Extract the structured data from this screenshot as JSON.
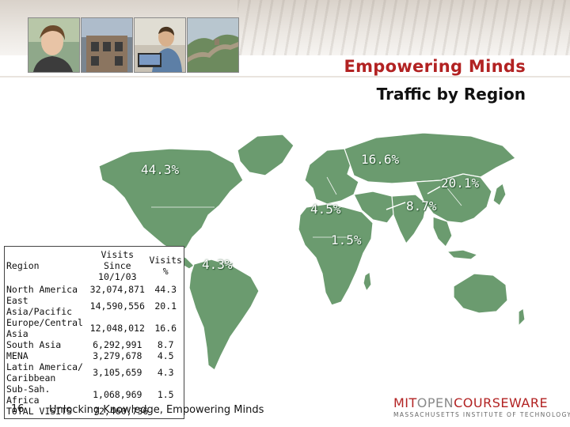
{
  "header": {
    "title": "Empowering Minds",
    "subtitle": "Traffic by Region"
  },
  "map": {
    "labels": {
      "north_america": "44.3%",
      "europe": "16.6%",
      "east_asia": "20.1%",
      "south_asia": "8.7%",
      "mena": "4.5%",
      "sub_saharan_africa": "1.5%",
      "latin_america": "4.3%"
    },
    "colors": {
      "land": "#6b9b6f",
      "land_edge": "#ffffff"
    }
  },
  "table": {
    "headers": {
      "region": "Region",
      "since_line1": "Visits Since",
      "since_line2": "10/1/03",
      "pct_line1": "Visits",
      "pct_line2": "%"
    },
    "rows": [
      {
        "region": [
          "North America"
        ],
        "visits": "32,074,871",
        "pct": "44.3"
      },
      {
        "region": [
          "East Asia/Pacific"
        ],
        "visits": "14,590,556",
        "pct": "20.1"
      },
      {
        "region": [
          "Europe/Central",
          "Asia"
        ],
        "visits": "12,048,012",
        "pct": "16.6"
      },
      {
        "region": [
          "South Asia"
        ],
        "visits": "6,292,991",
        "pct": "8.7"
      },
      {
        "region": [
          "MENA"
        ],
        "visits": "3,279,678",
        "pct": "4.5"
      },
      {
        "region": [
          "Latin America/",
          "Caribbean"
        ],
        "visits": "3,105,659",
        "pct": "4.3"
      },
      {
        "region": [
          "Sub-Sah. Africa"
        ],
        "visits": "1,068,969",
        "pct": "1.5"
      }
    ],
    "total": {
      "label": "TOTAL VISITS",
      "visits": "72,460,736"
    }
  },
  "footer": {
    "page_number": "16",
    "tagline": "Unlocking Knowledge, Empowering Minds",
    "logo": {
      "mit": "MIT",
      "open": "OPEN",
      "courseware": "COURSEWARE",
      "institute": "MASSACHUSETTS INSTITUTE OF TECHNOLOGY"
    }
  },
  "accent_color": "#b22222"
}
